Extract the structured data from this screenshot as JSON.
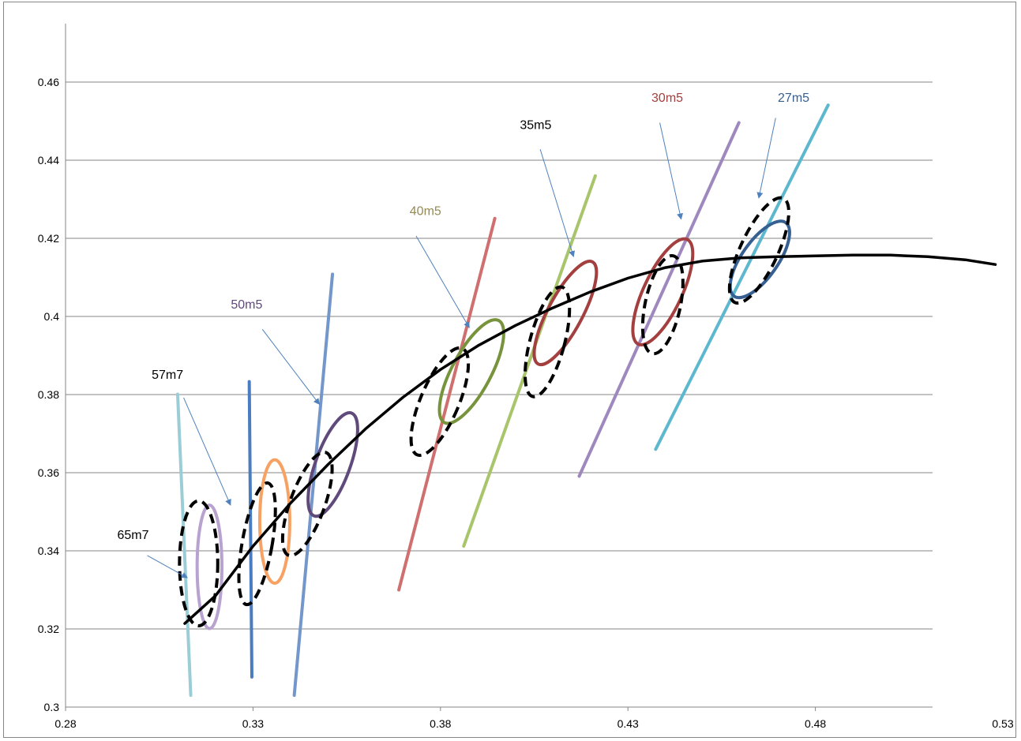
{
  "chart_data": {
    "type": "scatter",
    "title": "",
    "xlabel": "",
    "ylabel": "",
    "xlim": [
      0.28,
      0.53
    ],
    "ylim": [
      0.3,
      0.46
    ],
    "x_ticks": [
      "0.28",
      "0.33",
      "0.38",
      "0.43",
      "0.48",
      "0.53"
    ],
    "y_ticks": [
      "0.3",
      "0.32",
      "0.34",
      "0.36",
      "0.38",
      "0.4",
      "0.42",
      "0.44",
      "0.46"
    ],
    "grid": "horizontal",
    "legend": "none",
    "fit_curve": {
      "color": "#000000",
      "points": [
        [
          0.3118,
          0.3214
        ],
        [
          0.32,
          0.3285
        ],
        [
          0.33,
          0.3412
        ],
        [
          0.34,
          0.3522
        ],
        [
          0.35,
          0.3621
        ],
        [
          0.36,
          0.3712
        ],
        [
          0.37,
          0.3793
        ],
        [
          0.38,
          0.3864
        ],
        [
          0.39,
          0.3925
        ],
        [
          0.4,
          0.3977
        ],
        [
          0.41,
          0.4022
        ],
        [
          0.42,
          0.4063
        ],
        [
          0.43,
          0.4098
        ],
        [
          0.44,
          0.4125
        ],
        [
          0.45,
          0.4142
        ],
        [
          0.46,
          0.415
        ],
        [
          0.47,
          0.4153
        ],
        [
          0.48,
          0.4155
        ],
        [
          0.49,
          0.4157
        ],
        [
          0.5,
          0.4157
        ],
        [
          0.51,
          0.4153
        ],
        [
          0.52,
          0.4145
        ],
        [
          0.528,
          0.4133
        ]
      ]
    },
    "lines": [
      {
        "color": "#9BCDD6",
        "from": [
          0.3099,
          0.3801
        ],
        "to": [
          0.3134,
          0.303
        ]
      },
      {
        "color": "#4A7CC0",
        "from": [
          0.329,
          0.3833
        ],
        "to": [
          0.3297,
          0.3077
        ]
      },
      {
        "color": "#7396CB",
        "from": [
          0.341,
          0.303
        ],
        "to": [
          0.3512,
          0.4108
        ]
      },
      {
        "color": "#D06F6F",
        "from": [
          0.3689,
          0.33
        ],
        "to": [
          0.3945,
          0.4251
        ]
      },
      {
        "color": "#A8C56C",
        "from": [
          0.3862,
          0.3412
        ],
        "to": [
          0.4213,
          0.436
        ]
      },
      {
        "color": "#9E88BD",
        "from": [
          0.417,
          0.3591
        ],
        "to": [
          0.4596,
          0.4496
        ]
      },
      {
        "color": "#5DB8CF",
        "from": [
          0.4374,
          0.366
        ],
        "to": [
          0.4834,
          0.4541
        ]
      }
    ],
    "ellipses": [
      {
        "color": "#B8A2CF",
        "style": "solid",
        "cx": 0.3184,
        "cy": 0.3359,
        "rx": 0.0033,
        "ry": 0.0158,
        "rotate": 0
      },
      {
        "color": "#000000",
        "style": "dashed",
        "cx": 0.3155,
        "cy": 0.3368,
        "rx": 0.0051,
        "ry": 0.016,
        "rotate": 0
      },
      {
        "color": "#F7A262",
        "style": "solid",
        "cx": 0.3358,
        "cy": 0.3475,
        "rx": 0.004,
        "ry": 0.0158,
        "rotate": 0
      },
      {
        "color": "#000000",
        "style": "dashed",
        "cx": 0.3311,
        "cy": 0.3418,
        "rx": 0.004,
        "ry": 0.0158,
        "rotate": 10
      },
      {
        "color": "#604A7B",
        "style": "solid",
        "cx": 0.3513,
        "cy": 0.3621,
        "rx": 0.0046,
        "ry": 0.014,
        "rotate": 20
      },
      {
        "color": "#000000",
        "style": "dashed",
        "cx": 0.3445,
        "cy": 0.352,
        "rx": 0.0046,
        "ry": 0.014,
        "rotate": 20
      },
      {
        "color": "#77933C",
        "style": "solid",
        "cx": 0.3883,
        "cy": 0.3859,
        "rx": 0.0052,
        "ry": 0.0148,
        "rotate": 28
      },
      {
        "color": "#000000",
        "style": "dashed",
        "cx": 0.3798,
        "cy": 0.3782,
        "rx": 0.0051,
        "ry": 0.0148,
        "rotate": 23
      },
      {
        "color": "#A43F3F",
        "style": "solid",
        "cx": 0.4133,
        "cy": 0.4009,
        "rx": 0.0046,
        "ry": 0.0148,
        "rotate": 28
      },
      {
        "color": "#000000",
        "style": "dashed",
        "cx": 0.4085,
        "cy": 0.3935,
        "rx": 0.0046,
        "ry": 0.0145,
        "rotate": 15
      },
      {
        "color": "#A43F3F",
        "style": "solid",
        "cx": 0.4393,
        "cy": 0.4063,
        "rx": 0.0051,
        "ry": 0.0148,
        "rotate": 25
      },
      {
        "color": "#000000",
        "style": "dashed",
        "cx": 0.4393,
        "cy": 0.403,
        "rx": 0.0047,
        "ry": 0.0128,
        "rotate": 12
      },
      {
        "color": "#376092",
        "style": "solid",
        "cx": 0.4652,
        "cy": 0.4146,
        "rx": 0.0048,
        "ry": 0.0115,
        "rotate": 35
      },
      {
        "color": "#000000",
        "style": "dashed",
        "cx": 0.465,
        "cy": 0.4169,
        "rx": 0.005,
        "ry": 0.0147,
        "rotate": 25
      }
    ],
    "annotations": [
      {
        "text": "65m7",
        "color": "#000000",
        "label_at": [
          0.298,
          0.343
        ],
        "arrow_from": [
          0.3018,
          0.3388
        ],
        "arrow_to": [
          0.3125,
          0.3331
        ]
      },
      {
        "text": "57m7",
        "color": "#000000",
        "label_at": [
          0.3072,
          0.384
        ],
        "arrow_from": [
          0.3115,
          0.3792
        ],
        "arrow_to": [
          0.324,
          0.3517
        ]
      },
      {
        "text": "50m5",
        "color": "#604A7B",
        "label_at": [
          0.3283,
          0.402
        ],
        "arrow_from": [
          0.3325,
          0.3967
        ],
        "arrow_to": [
          0.3477,
          0.3775
        ]
      },
      {
        "text": "40m5",
        "color": "#948A54",
        "label_at": [
          0.376,
          0.426
        ],
        "arrow_from": [
          0.3735,
          0.4206
        ],
        "arrow_to": [
          0.3877,
          0.3971
        ]
      },
      {
        "text": "35m5",
        "color": "#000000",
        "label_at": [
          0.4054,
          0.448
        ],
        "arrow_from": [
          0.4066,
          0.4428
        ],
        "arrow_to": [
          0.4155,
          0.4153
        ]
      },
      {
        "text": "30m5",
        "color": "#A43F3F",
        "label_at": [
          0.4405,
          0.455
        ],
        "arrow_from": [
          0.4385,
          0.4496
        ],
        "arrow_to": [
          0.4442,
          0.4249
        ]
      },
      {
        "text": "27m5",
        "color": "#376092",
        "label_at": [
          0.4742,
          0.455
        ],
        "arrow_from": [
          0.4694,
          0.4508
        ],
        "arrow_to": [
          0.4649,
          0.4303
        ]
      }
    ]
  }
}
